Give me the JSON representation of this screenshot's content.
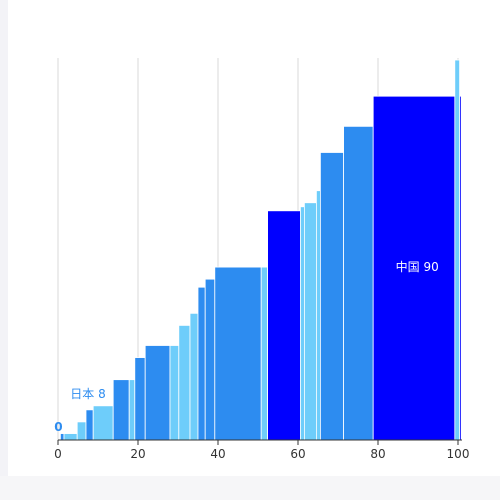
{
  "chart_data": {
    "type": "bar",
    "title": "",
    "xlabel": "",
    "ylabel": "",
    "xlim": [
      0,
      100
    ],
    "ylim": [
      0,
      95
    ],
    "x_ticks": [
      "0",
      "20",
      "40",
      "60",
      "80",
      "100"
    ],
    "grid": "vertical",
    "colors": {
      "light": "#6ecdfa",
      "mid": "#2d8cf0",
      "highlight": "#0000ff"
    },
    "bars": [
      {
        "x0": 0.6,
        "x1": 1.5,
        "y": 1.6,
        "color": "mid"
      },
      {
        "x0": 1.5,
        "x1": 4.8,
        "y": 1.6,
        "color": "light"
      },
      {
        "x0": 4.8,
        "x1": 7.0,
        "y": 4.5,
        "color": "light"
      },
      {
        "x0": 7.0,
        "x1": 8.8,
        "y": 7.5,
        "color": "mid"
      },
      {
        "x0": 8.8,
        "x1": 13.8,
        "y": 8.5,
        "color": "light"
      },
      {
        "x0": 13.8,
        "x1": 17.8,
        "y": 15.0,
        "color": "mid"
      },
      {
        "x0": 17.8,
        "x1": 19.2,
        "y": 15.0,
        "color": "light"
      },
      {
        "x0": 19.2,
        "x1": 21.8,
        "y": 20.5,
        "color": "mid"
      },
      {
        "x0": 21.8,
        "x1": 28.0,
        "y": 23.5,
        "color": "mid"
      },
      {
        "x0": 28.0,
        "x1": 30.2,
        "y": 23.5,
        "color": "light"
      },
      {
        "x0": 30.2,
        "x1": 33.0,
        "y": 28.5,
        "color": "light"
      },
      {
        "x0": 33.0,
        "x1": 35.0,
        "y": 31.5,
        "color": "light"
      },
      {
        "x0": 35.0,
        "x1": 36.8,
        "y": 38.0,
        "color": "mid"
      },
      {
        "x0": 36.8,
        "x1": 39.2,
        "y": 40.0,
        "color": "mid"
      },
      {
        "x0": 39.2,
        "x1": 50.8,
        "y": 43.0,
        "color": "mid"
      },
      {
        "x0": 50.8,
        "x1": 52.4,
        "y": 43.0,
        "color": "light"
      },
      {
        "x0": 52.4,
        "x1": 65.6,
        "y": 57.0,
        "color": "highlight"
      },
      {
        "x0": 60.6,
        "x1": 61.6,
        "y": 58.0,
        "color": "light"
      },
      {
        "x0": 61.6,
        "x1": 64.6,
        "y": 59.0,
        "color": "light"
      },
      {
        "x0": 64.6,
        "x1": 65.6,
        "y": 62.0,
        "color": "light"
      },
      {
        "x0": 65.6,
        "x1": 71.4,
        "y": 71.5,
        "color": "mid"
      },
      {
        "x0": 71.4,
        "x1": 78.8,
        "y": 78.0,
        "color": "mid"
      },
      {
        "x0": 78.8,
        "x1": 100.8,
        "y": 85.5,
        "color": "highlight"
      },
      {
        "x0": 99.2,
        "x1": 100.4,
        "y": 94.5,
        "color": "light"
      }
    ],
    "annotations": [
      {
        "text": "0",
        "x": 0.1,
        "y": 2.2,
        "style": "outside"
      },
      {
        "text": "日本 8",
        "x": 7.5,
        "y": 10.5,
        "style": "outside"
      },
      {
        "text": "中国 90",
        "x": 89.8,
        "y": 43.0,
        "style": "inside"
      }
    ]
  }
}
